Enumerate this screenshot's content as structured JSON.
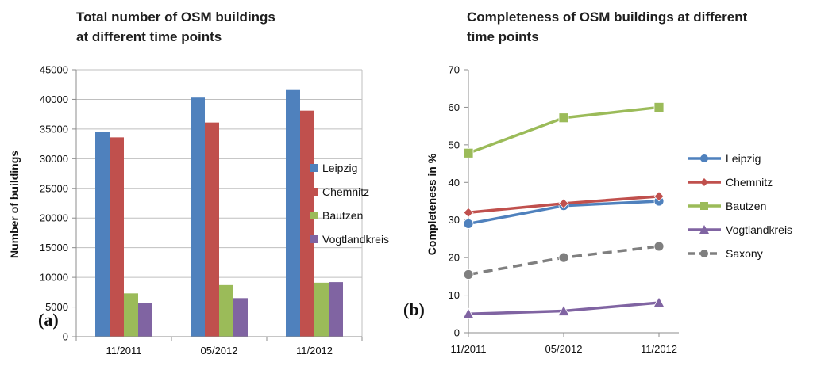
{
  "chart_data": [
    {
      "type": "bar",
      "title_lines": [
        "Total number of OSM buildings",
        "at different time points"
      ],
      "panel_label": "(a)",
      "xlabel": "",
      "ylabel": "Number of buildings",
      "ylim": [
        0,
        45000
      ],
      "yticks": [
        0,
        5000,
        10000,
        15000,
        20000,
        25000,
        30000,
        35000,
        40000,
        45000
      ],
      "grid": true,
      "legend_position": "right",
      "categories": [
        "11/2011",
        "05/2012",
        "11/2012"
      ],
      "series": [
        {
          "name": "Leipzig",
          "color": "#4f81bd",
          "values": [
            34500,
            40300,
            41700
          ]
        },
        {
          "name": "Chemnitz",
          "color": "#c0504d",
          "values": [
            33600,
            36100,
            38100
          ]
        },
        {
          "name": "Bautzen",
          "color": "#9bbb59",
          "values": [
            7300,
            8700,
            9100
          ]
        },
        {
          "name": "Vogtlandkreis",
          "color": "#8064a2",
          "values": [
            5700,
            6500,
            9200
          ]
        }
      ]
    },
    {
      "type": "line",
      "title_lines": [
        "Completeness of OSM buildings  at different",
        "time points"
      ],
      "panel_label": "(b)",
      "xlabel": "",
      "ylabel": "Completeness in %",
      "ylim": [
        0,
        70
      ],
      "yticks": [
        0,
        10,
        20,
        30,
        40,
        50,
        60,
        70
      ],
      "grid": false,
      "legend_position": "right",
      "categories": [
        "11/2011",
        "05/2012",
        "11/2012"
      ],
      "series": [
        {
          "name": "Leipzig",
          "color": "#4f81bd",
          "marker": "circle",
          "dashed": false,
          "values": [
            29,
            33.8,
            35
          ]
        },
        {
          "name": "Chemnitz",
          "color": "#c0504d",
          "marker": "diamond",
          "dashed": false,
          "values": [
            32,
            34.4,
            36.3
          ]
        },
        {
          "name": "Bautzen",
          "color": "#9bbb59",
          "marker": "square",
          "dashed": false,
          "values": [
            47.8,
            57.2,
            60
          ]
        },
        {
          "name": "Vogtlandkreis",
          "color": "#8064a2",
          "marker": "triangle",
          "dashed": false,
          "values": [
            5,
            5.8,
            8
          ]
        },
        {
          "name": "Saxony",
          "color": "#7f7f7f",
          "marker": "circle",
          "dashed": true,
          "values": [
            15.5,
            20,
            23
          ]
        }
      ]
    }
  ]
}
